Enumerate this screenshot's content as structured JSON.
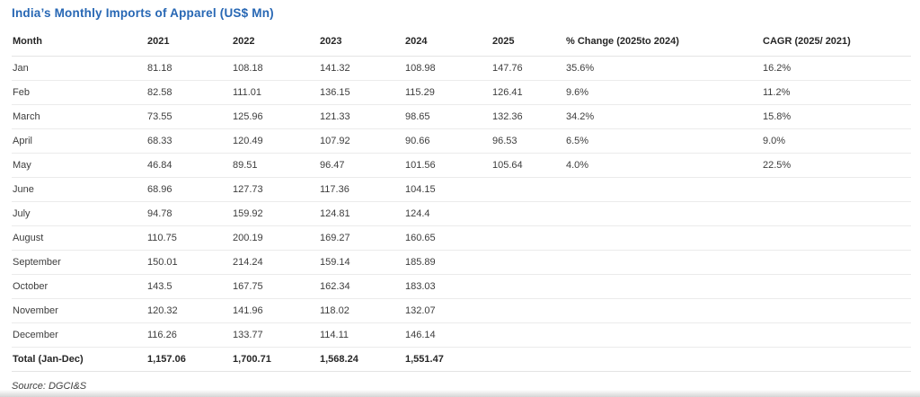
{
  "page": {
    "accent_color": "#2767b4",
    "text_color": "#3d3d3d"
  },
  "chart_data": {
    "type": "table",
    "title": "India’s Monthly Imports of Apparel (US$ Mn)",
    "source": "Source: DGCI&S",
    "columns": [
      "Month",
      "2021",
      "2022",
      "2023",
      "2024",
      "2025",
      "% Change (2025to 2024)",
      "CAGR (2025/ 2021)"
    ],
    "rows": [
      [
        "Jan",
        "81.18",
        "108.18",
        "141.32",
        "108.98",
        "147.76",
        "35.6%",
        "16.2%"
      ],
      [
        "Feb",
        "82.58",
        "111.01",
        "136.15",
        "115.29",
        "126.41",
        "9.6%",
        "11.2%"
      ],
      [
        "March",
        "73.55",
        "125.96",
        "121.33",
        "98.65",
        "132.36",
        "34.2%",
        "15.8%"
      ],
      [
        "April",
        "68.33",
        "120.49",
        "107.92",
        "90.66",
        "96.53",
        "6.5%",
        "9.0%"
      ],
      [
        "May",
        "46.84",
        "89.51",
        "96.47",
        "101.56",
        "105.64",
        "4.0%",
        "22.5%"
      ],
      [
        "June",
        "68.96",
        "127.73",
        "117.36",
        "104.15",
        "",
        "",
        ""
      ],
      [
        "July",
        "94.78",
        "159.92",
        "124.81",
        "124.4",
        "",
        "",
        ""
      ],
      [
        "August",
        "110.75",
        "200.19",
        "169.27",
        "160.65",
        "",
        "",
        ""
      ],
      [
        "September",
        "150.01",
        "214.24",
        "159.14",
        "185.89",
        "",
        "",
        ""
      ],
      [
        "October",
        "143.5",
        "167.75",
        "162.34",
        "183.03",
        "",
        "",
        ""
      ],
      [
        "November",
        "120.32",
        "141.96",
        "118.02",
        "132.07",
        "",
        "",
        ""
      ],
      [
        "December",
        "116.26",
        "133.77",
        "114.11",
        "146.14",
        "",
        "",
        ""
      ]
    ],
    "total_row": [
      "Total (Jan-Dec)",
      "1,157.06",
      "1,700.71",
      "1,568.24",
      "1,551.47",
      "",
      "",
      ""
    ]
  }
}
